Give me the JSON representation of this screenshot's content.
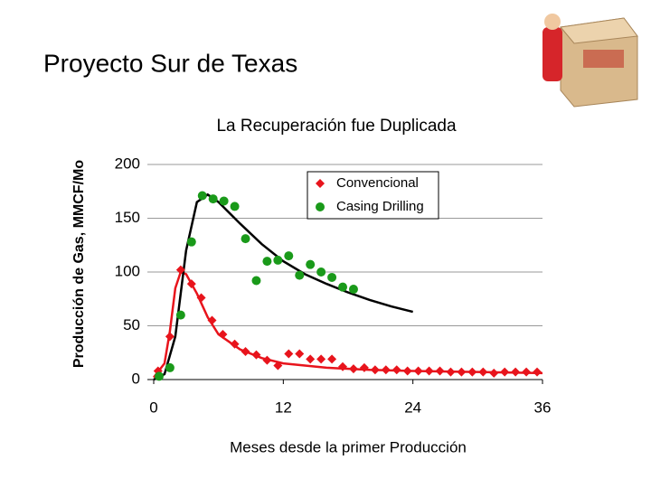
{
  "header": {
    "title": "Proyecto Sur de Texas"
  },
  "chart_data": {
    "type": "scatter",
    "title": "La Recuperación fue Duplicada",
    "x_label": "Meses desde la primer Producción",
    "y_label": "Producción de Gas, MMCF/Mo",
    "xlim": [
      0,
      36
    ],
    "xticks": [
      0,
      12,
      24,
      36
    ],
    "ylim": [
      0,
      200
    ],
    "yticks": [
      0,
      50,
      100,
      150,
      200
    ],
    "grid": true,
    "legend": "top-right",
    "series": [
      {
        "name": "Convencional",
        "color": "#e8141c",
        "marker": "diamond",
        "x": [
          0.4,
          1.5,
          2.5,
          3.5,
          4.4,
          5.4,
          6.4,
          7.5,
          8.5,
          9.5,
          10.5,
          11.5,
          12.5,
          13.5,
          14.5,
          15.5,
          16.5,
          17.5,
          18.5,
          19.5,
          20.5,
          21.5,
          22.5,
          23.5,
          24.5,
          25.5,
          26.5,
          27.5,
          28.5,
          29.5,
          30.5,
          31.5,
          32.5,
          33.5,
          34.5,
          35.5
        ],
        "values": [
          8,
          40,
          102,
          89,
          76,
          55,
          42,
          33,
          26,
          23,
          18,
          13,
          24,
          24,
          19,
          19,
          19,
          12,
          10,
          11,
          9,
          9,
          9,
          8,
          8,
          8,
          8,
          7,
          7,
          7,
          7,
          6,
          7,
          7,
          7,
          7
        ]
      },
      {
        "name": "Casing Drilling",
        "color": "#1a9a1a",
        "marker": "circle",
        "x": [
          0.5,
          1.5,
          2.5,
          3.5,
          4.5,
          5.5,
          6.5,
          7.5,
          8.5,
          9.5,
          10.5,
          11.5,
          12.5,
          13.5,
          14.5,
          15.5,
          16.5,
          17.5,
          18.5
        ],
        "values": [
          3,
          11,
          60,
          128,
          171,
          168,
          166,
          161,
          131,
          92,
          110,
          111,
          115,
          97,
          107,
          100,
          95,
          86,
          84
        ]
      },
      {
        "color": "#e8141c",
        "marker": "none",
        "x": [
          0,
          1,
          1.5,
          2,
          2.5,
          3,
          4,
          5,
          6,
          8,
          10,
          12,
          16,
          20,
          24,
          30,
          36
        ],
        "values": [
          2,
          15,
          45,
          85,
          100,
          98,
          80,
          58,
          42,
          28,
          20,
          15,
          11,
          9,
          8,
          7,
          6
        ]
      },
      {
        "color": "#000000",
        "marker": "none",
        "x": [
          0,
          1,
          2,
          3,
          4,
          5,
          6,
          8,
          10,
          12,
          14,
          16,
          18,
          20,
          22,
          24
        ],
        "values": [
          0,
          5,
          40,
          120,
          165,
          172,
          165,
          145,
          126,
          110,
          98,
          89,
          81,
          74,
          68,
          63
        ]
      }
    ]
  }
}
